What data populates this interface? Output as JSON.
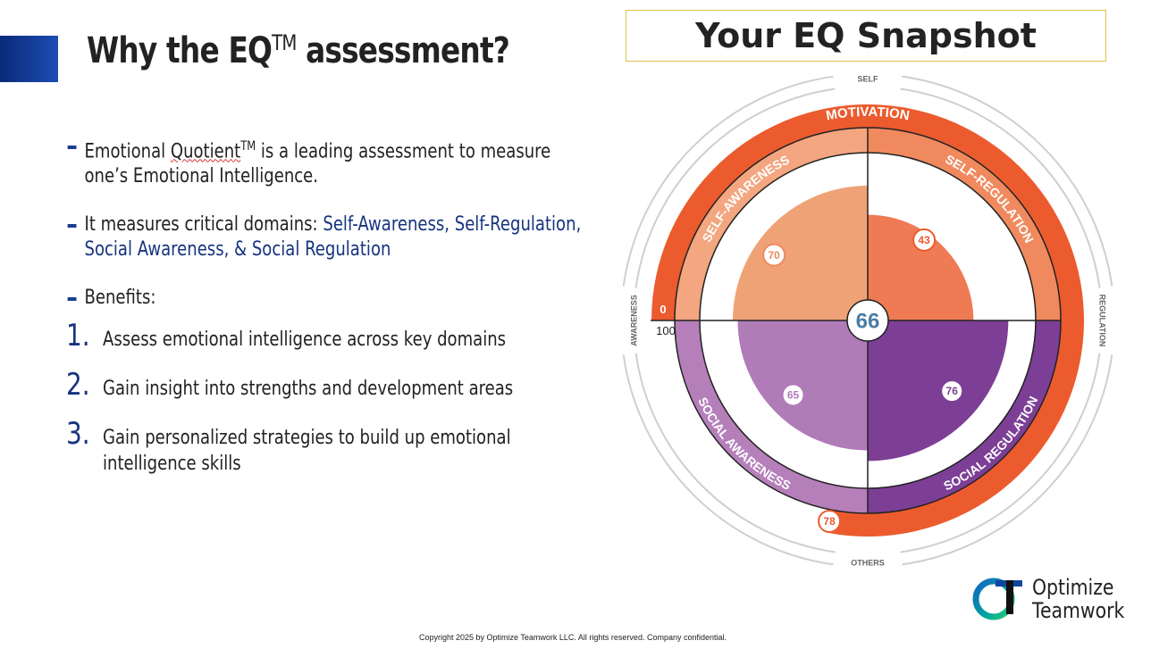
{
  "slide": {
    "title_prefix": "Why the EQ",
    "title_sup": "TM",
    "title_suffix": " assessment?"
  },
  "bullets": [
    {
      "pre": "Emotional ",
      "mark": "Quotient",
      "sup": "TM",
      "post": " is a leading assessment to measure one’s Emotional Intelligence."
    },
    {
      "plain": "It measures critical domains: ",
      "highlight": "Self-Awareness, Self-Regulation, Social Awareness, & Social Regulation"
    },
    {
      "plain": "Benefits:"
    }
  ],
  "benefits": [
    {
      "num": "1.",
      "text": "Assess emotional intelligence across key domains"
    },
    {
      "num": "2.",
      "text": "Gain insight into strengths and development areas"
    },
    {
      "num": "3.",
      "text": "Gain personalized strategies to build up emotional intelligence skills"
    }
  ],
  "snapshot": {
    "title": "Your EQ Snapshot",
    "overall": 66,
    "motivation": {
      "label": "MOTIVATION",
      "score": 78
    },
    "domains": [
      {
        "key": "self_awareness",
        "label": "SELF-AWARENESS",
        "score": 70,
        "color": "#f0a277",
        "ring": "#f3a680"
      },
      {
        "key": "self_regulation",
        "label": "SELF-REGULATION",
        "score": 43,
        "color": "#ee7b54",
        "ring": "#f08a5e"
      },
      {
        "key": "social_awareness",
        "label": "SOCIAL AWARENESS",
        "score": 65,
        "color": "#b07cb8",
        "ring": "#b57fba"
      },
      {
        "key": "social_regulation",
        "label": "SOCIAL REGULATION",
        "score": 76,
        "color": "#7d3f96",
        "ring": "#7d3f96"
      }
    ],
    "scale_min": "0",
    "scale_max": "100",
    "axis_labels": {
      "top": "SELF",
      "bottom": "OTHERS",
      "left": "AWARENESS",
      "right": "REGULATION"
    },
    "colors": {
      "motivation_ring": "#ec5b2e",
      "motivation_track": "#cfcfcf",
      "divider": "#222222",
      "overall_text": "#4a7da6"
    }
  },
  "copyright": "Copyright 2025 by Optimize Teamwork LLC. All rights reserved. Company confidential.",
  "logo": {
    "line1": "Optimize",
    "line2": "Teamwork",
    "mark_icon": "ot-logo-icon"
  }
}
